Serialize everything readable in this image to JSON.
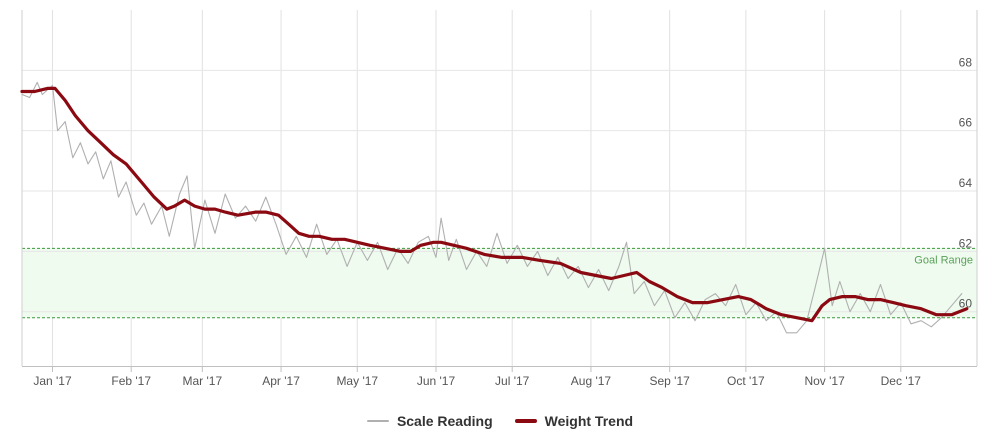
{
  "chart_data": {
    "type": "line",
    "title": "",
    "xlabel": "",
    "ylabel": "",
    "x_axis": {
      "type": "datetime",
      "range": [
        "2016-12-20",
        "2017-12-31"
      ],
      "tick_labels": [
        "Jan '17",
        "Feb '17",
        "Mar '17",
        "Apr '17",
        "May '17",
        "Jun '17",
        "Jul '17",
        "Aug '17",
        "Sep '17",
        "Oct '17",
        "Nov '17",
        "Dec '17"
      ],
      "tick_dates": [
        "2017-01-01",
        "2017-02-01",
        "2017-03-01",
        "2017-04-01",
        "2017-05-01",
        "2017-06-01",
        "2017-07-01",
        "2017-08-01",
        "2017-09-01",
        "2017-10-01",
        "2017-11-01",
        "2017-12-01"
      ]
    },
    "y_axis": {
      "ylim": [
        58.2,
        70
      ],
      "tick_labels": [
        "60",
        "62",
        "64",
        "66",
        "68"
      ],
      "tick_values": [
        60,
        62,
        64,
        66,
        68
      ],
      "position": "right"
    },
    "grid": true,
    "plot_band": {
      "label": "Goal Range",
      "from": 59.8,
      "to": 62.1,
      "color": "#effbef",
      "border_color": "#3c9a3c"
    },
    "legend": {
      "position": "bottom-center"
    },
    "series": [
      {
        "name": "Scale Reading",
        "color": "#b0b0b0",
        "data": [
          [
            "2016-12-20",
            67.2
          ],
          [
            "2016-12-23",
            67.1
          ],
          [
            "2016-12-26",
            67.6
          ],
          [
            "2016-12-28",
            67.2
          ],
          [
            "2017-01-01",
            67.5
          ],
          [
            "2017-01-03",
            66.0
          ],
          [
            "2017-01-06",
            66.3
          ],
          [
            "2017-01-09",
            65.1
          ],
          [
            "2017-01-12",
            65.6
          ],
          [
            "2017-01-15",
            64.9
          ],
          [
            "2017-01-18",
            65.3
          ],
          [
            "2017-01-21",
            64.4
          ],
          [
            "2017-01-24",
            65.0
          ],
          [
            "2017-01-27",
            63.8
          ],
          [
            "2017-01-30",
            64.3
          ],
          [
            "2017-02-03",
            63.2
          ],
          [
            "2017-02-06",
            63.6
          ],
          [
            "2017-02-09",
            62.9
          ],
          [
            "2017-02-13",
            63.5
          ],
          [
            "2017-02-16",
            62.5
          ],
          [
            "2017-02-20",
            63.9
          ],
          [
            "2017-02-23",
            64.5
          ],
          [
            "2017-02-26",
            62.1
          ],
          [
            "2017-03-02",
            63.7
          ],
          [
            "2017-03-06",
            62.6
          ],
          [
            "2017-03-10",
            63.9
          ],
          [
            "2017-03-14",
            63.1
          ],
          [
            "2017-03-18",
            63.5
          ],
          [
            "2017-03-22",
            63.0
          ],
          [
            "2017-03-26",
            63.8
          ],
          [
            "2017-03-30",
            62.9
          ],
          [
            "2017-04-03",
            61.9
          ],
          [
            "2017-04-07",
            62.5
          ],
          [
            "2017-04-11",
            61.8
          ],
          [
            "2017-04-15",
            62.9
          ],
          [
            "2017-04-19",
            61.9
          ],
          [
            "2017-04-23",
            62.4
          ],
          [
            "2017-04-27",
            61.5
          ],
          [
            "2017-05-01",
            62.3
          ],
          [
            "2017-05-05",
            61.7
          ],
          [
            "2017-05-09",
            62.3
          ],
          [
            "2017-05-13",
            61.4
          ],
          [
            "2017-05-17",
            62.1
          ],
          [
            "2017-05-21",
            61.6
          ],
          [
            "2017-05-25",
            62.3
          ],
          [
            "2017-05-29",
            62.5
          ],
          [
            "2017-06-01",
            61.8
          ],
          [
            "2017-06-03",
            63.1
          ],
          [
            "2017-06-06",
            61.7
          ],
          [
            "2017-06-09",
            62.4
          ],
          [
            "2017-06-13",
            61.4
          ],
          [
            "2017-06-17",
            62.0
          ],
          [
            "2017-06-21",
            61.5
          ],
          [
            "2017-06-25",
            62.6
          ],
          [
            "2017-06-29",
            61.6
          ],
          [
            "2017-07-03",
            62.2
          ],
          [
            "2017-07-07",
            61.5
          ],
          [
            "2017-07-11",
            62.0
          ],
          [
            "2017-07-15",
            61.2
          ],
          [
            "2017-07-19",
            61.8
          ],
          [
            "2017-07-23",
            61.1
          ],
          [
            "2017-07-27",
            61.5
          ],
          [
            "2017-07-31",
            60.8
          ],
          [
            "2017-08-04",
            61.4
          ],
          [
            "2017-08-08",
            60.7
          ],
          [
            "2017-08-12",
            61.5
          ],
          [
            "2017-08-15",
            62.3
          ],
          [
            "2017-08-18",
            60.6
          ],
          [
            "2017-08-22",
            61.0
          ],
          [
            "2017-08-26",
            60.2
          ],
          [
            "2017-08-30",
            60.7
          ],
          [
            "2017-09-03",
            59.8
          ],
          [
            "2017-09-07",
            60.3
          ],
          [
            "2017-09-11",
            59.7
          ],
          [
            "2017-09-15",
            60.4
          ],
          [
            "2017-09-19",
            60.6
          ],
          [
            "2017-09-23",
            60.2
          ],
          [
            "2017-09-27",
            60.9
          ],
          [
            "2017-10-01",
            59.9
          ],
          [
            "2017-10-05",
            60.3
          ],
          [
            "2017-10-09",
            59.7
          ],
          [
            "2017-10-13",
            60.0
          ],
          [
            "2017-10-17",
            59.3
          ],
          [
            "2017-10-21",
            59.3
          ],
          [
            "2017-10-25",
            59.7
          ],
          [
            "2017-10-28",
            60.7
          ],
          [
            "2017-11-01",
            62.1
          ],
          [
            "2017-11-04",
            60.2
          ],
          [
            "2017-11-07",
            61.0
          ],
          [
            "2017-11-11",
            60.0
          ],
          [
            "2017-11-15",
            60.6
          ],
          [
            "2017-11-19",
            60.0
          ],
          [
            "2017-11-23",
            60.9
          ],
          [
            "2017-11-27",
            59.9
          ],
          [
            "2017-12-01",
            60.3
          ],
          [
            "2017-12-05",
            59.6
          ],
          [
            "2017-12-09",
            59.7
          ],
          [
            "2017-12-13",
            59.5
          ],
          [
            "2017-12-17",
            59.8
          ],
          [
            "2017-12-21",
            60.2
          ],
          [
            "2017-12-25",
            60.6
          ]
        ]
      },
      {
        "name": "Weight Trend",
        "color": "#8b0a12",
        "data": [
          [
            "2016-12-20",
            67.3
          ],
          [
            "2016-12-25",
            67.3
          ],
          [
            "2016-12-30",
            67.4
          ],
          [
            "2017-01-02",
            67.4
          ],
          [
            "2017-01-06",
            67.0
          ],
          [
            "2017-01-10",
            66.5
          ],
          [
            "2017-01-15",
            66.0
          ],
          [
            "2017-01-20",
            65.6
          ],
          [
            "2017-01-25",
            65.2
          ],
          [
            "2017-01-30",
            64.9
          ],
          [
            "2017-02-05",
            64.3
          ],
          [
            "2017-02-10",
            63.8
          ],
          [
            "2017-02-15",
            63.4
          ],
          [
            "2017-02-18",
            63.5
          ],
          [
            "2017-02-22",
            63.7
          ],
          [
            "2017-02-26",
            63.5
          ],
          [
            "2017-03-02",
            63.4
          ],
          [
            "2017-03-06",
            63.4
          ],
          [
            "2017-03-10",
            63.3
          ],
          [
            "2017-03-15",
            63.2
          ],
          [
            "2017-03-22",
            63.3
          ],
          [
            "2017-03-26",
            63.3
          ],
          [
            "2017-03-31",
            63.2
          ],
          [
            "2017-04-04",
            62.9
          ],
          [
            "2017-04-08",
            62.6
          ],
          [
            "2017-04-12",
            62.5
          ],
          [
            "2017-04-16",
            62.5
          ],
          [
            "2017-04-21",
            62.4
          ],
          [
            "2017-04-26",
            62.4
          ],
          [
            "2017-05-01",
            62.3
          ],
          [
            "2017-05-06",
            62.2
          ],
          [
            "2017-05-12",
            62.1
          ],
          [
            "2017-05-18",
            62.0
          ],
          [
            "2017-05-22",
            62.0
          ],
          [
            "2017-05-26",
            62.2
          ],
          [
            "2017-05-31",
            62.3
          ],
          [
            "2017-06-03",
            62.3
          ],
          [
            "2017-06-08",
            62.2
          ],
          [
            "2017-06-13",
            62.1
          ],
          [
            "2017-06-20",
            61.9
          ],
          [
            "2017-06-27",
            61.8
          ],
          [
            "2017-07-05",
            61.8
          ],
          [
            "2017-07-12",
            61.7
          ],
          [
            "2017-07-20",
            61.6
          ],
          [
            "2017-07-28",
            61.3
          ],
          [
            "2017-08-03",
            61.2
          ],
          [
            "2017-08-09",
            61.1
          ],
          [
            "2017-08-14",
            61.2
          ],
          [
            "2017-08-19",
            61.3
          ],
          [
            "2017-08-24",
            61.0
          ],
          [
            "2017-08-29",
            60.8
          ],
          [
            "2017-09-04",
            60.5
          ],
          [
            "2017-09-10",
            60.3
          ],
          [
            "2017-09-16",
            60.3
          ],
          [
            "2017-09-22",
            60.4
          ],
          [
            "2017-09-28",
            60.5
          ],
          [
            "2017-10-03",
            60.4
          ],
          [
            "2017-10-09",
            60.1
          ],
          [
            "2017-10-15",
            59.9
          ],
          [
            "2017-10-21",
            59.8
          ],
          [
            "2017-10-27",
            59.7
          ],
          [
            "2017-10-31",
            60.2
          ],
          [
            "2017-11-03",
            60.4
          ],
          [
            "2017-11-08",
            60.5
          ],
          [
            "2017-11-13",
            60.5
          ],
          [
            "2017-11-18",
            60.4
          ],
          [
            "2017-11-23",
            60.4
          ],
          [
            "2017-11-28",
            60.3
          ],
          [
            "2017-12-03",
            60.2
          ],
          [
            "2017-12-09",
            60.1
          ],
          [
            "2017-12-15",
            59.9
          ],
          [
            "2017-12-21",
            59.9
          ],
          [
            "2017-12-27",
            60.1
          ]
        ]
      }
    ]
  }
}
